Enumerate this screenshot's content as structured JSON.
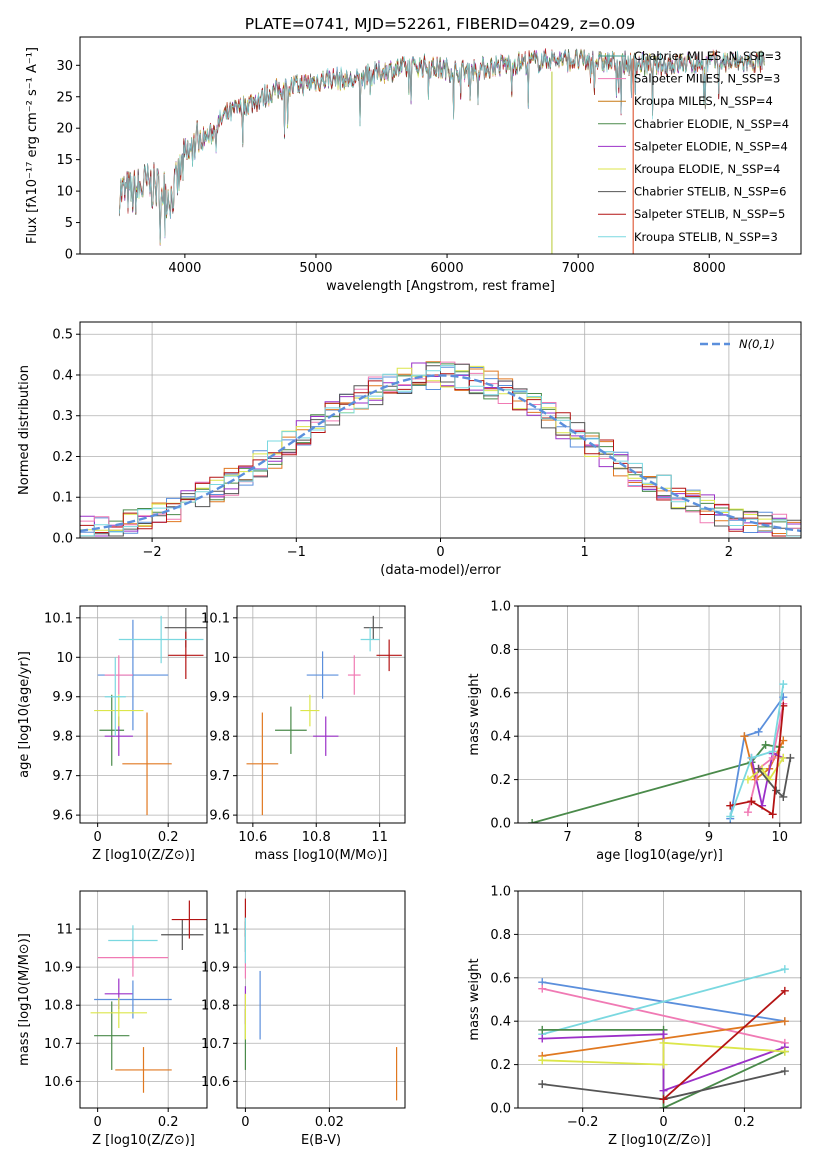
{
  "figure": {
    "title": "PLATE=0741, MJD=52261, FIBERID=0429, z=0.09"
  },
  "chart_data": [
    {
      "id": "spectrum",
      "type": "line",
      "xlabel": "wavelength [Angstrom, rest frame]",
      "ylabel": "Flux [fλ10⁻¹⁷ erg cm⁻² s⁻¹ A⁻¹]",
      "xlim": [
        3200,
        8700
      ],
      "ylim": [
        0,
        34.5
      ],
      "xticks": [
        4000,
        5000,
        6000,
        7000,
        8000
      ],
      "yticks": [
        0,
        5,
        10,
        15,
        20,
        25,
        30
      ],
      "grid": false,
      "legend": "top-right",
      "continuum": {
        "x": [
          3500,
          3600,
          3700,
          3800,
          3900,
          4000,
          4100,
          4200,
          4300,
          4500,
          4700,
          4900,
          5100,
          5300,
          5500,
          5800,
          6100,
          6400,
          6800,
          7200,
          7600,
          8000,
          8400
        ],
        "y": [
          10,
          9.5,
          11,
          10.5,
          9,
          15,
          18,
          19,
          22,
          24,
          26,
          27,
          28,
          27.5,
          29,
          30,
          29,
          30,
          31,
          30.5,
          30,
          30.5,
          30.5
        ]
      },
      "series": [
        {
          "name": "Chabrier MILES, N_SSP=3",
          "color": "#3c9a8c"
        },
        {
          "name": "Salpeter MILES, N_SSP=3",
          "color": "#f07ab4"
        },
        {
          "name": "Kroupa MILES, N_SSP=4",
          "color": "#c87814"
        },
        {
          "name": "Chabrier ELODIE, N_SSP=4",
          "color": "#4a8a4a"
        },
        {
          "name": "Salpeter ELODIE, N_SSP=4",
          "color": "#9b30c8"
        },
        {
          "name": "Kroupa ELODIE, N_SSP=4",
          "color": "#dce64a"
        },
        {
          "name": "Chabrier STELIB, N_SSP=6",
          "color": "#555555"
        },
        {
          "name": "Salpeter STELIB, N_SSP=5",
          "color": "#b41414"
        },
        {
          "name": "Kroupa STELIB, N_SSP=3",
          "color": "#7ad8e0"
        }
      ]
    },
    {
      "id": "residuals",
      "type": "histogram",
      "xlabel": "(data-model)/error",
      "ylabel": "Normed distribution",
      "xlim": [
        -2.5,
        2.5
      ],
      "ylim": [
        0,
        0.53
      ],
      "xticks": [
        -2,
        -1,
        0,
        1,
        2
      ],
      "yticks": [
        0.0,
        0.1,
        0.2,
        0.3,
        0.4,
        0.5
      ],
      "grid": true,
      "legend": "top-right",
      "reference": {
        "name": "N(0,1)",
        "color": "#5b8fdc"
      },
      "bin_width": 0.1,
      "series_colors": [
        "#5b8fdc",
        "#e07820",
        "#4a8a4a",
        "#9b30c8",
        "#f07ab4",
        "#dce64a",
        "#555555",
        "#b41414",
        "#7ad8e0"
      ]
    },
    {
      "id": "age-vs-Z",
      "type": "errorbar",
      "xlabel": "Z [log10(Z/Z⊙)]",
      "ylabel": "age  [log10(age/yr)]",
      "xlim": [
        -0.05,
        0.31
      ],
      "ylim": [
        9.58,
        10.13
      ],
      "xticks": [
        0.0,
        0.2
      ],
      "yticks": [
        9.6,
        9.7,
        9.8,
        9.9,
        10.0,
        10.1
      ],
      "grid": true,
      "points": [
        {
          "x": 0.14,
          "y": 9.73,
          "xerr": 0.07,
          "yerr": 0.13,
          "color": "#e07820"
        },
        {
          "x": 0.04,
          "y": 9.815,
          "xerr": 0.035,
          "yerr": 0.09,
          "color": "#4a8a4a"
        },
        {
          "x": 0.06,
          "y": 9.8,
          "xerr": 0.04,
          "yerr": 0.05,
          "color": "#9b30c8"
        },
        {
          "x": 0.1,
          "y": 9.955,
          "xerr": 0.1,
          "yerr": 0.14,
          "color": "#5b8fdc"
        },
        {
          "x": 0.06,
          "y": 9.955,
          "xerr": 0.04,
          "yerr": 0.05,
          "color": "#f07ab4"
        },
        {
          "x": 0.06,
          "y": 9.865,
          "xerr": 0.07,
          "yerr": 0.04,
          "color": "#dce64a"
        },
        {
          "x": 0.25,
          "y": 10.075,
          "xerr": 0.06,
          "yerr": 0.05,
          "color": "#555555"
        },
        {
          "x": 0.25,
          "y": 10.005,
          "xerr": 0.05,
          "yerr": 0.06,
          "color": "#b41414"
        },
        {
          "x": 0.18,
          "y": 10.045,
          "xerr": 0.12,
          "yerr": 0.06,
          "color": "#7ad8e0"
        },
        {
          "x": 0.05,
          "y": 9.9,
          "xerr": 0.03,
          "yerr": 0.1,
          "color": "#7ad8e0"
        }
      ]
    },
    {
      "id": "age-vs-mass",
      "type": "errorbar",
      "xlabel": "mass [log10(M/M⊙)]",
      "ylabel": "",
      "xlim": [
        10.55,
        11.08
      ],
      "ylim": [
        9.58,
        10.13
      ],
      "xticks": [
        10.6,
        10.8,
        11.0
      ],
      "yticks": [
        9.6,
        9.7,
        9.8,
        9.9,
        10.0,
        10.1
      ],
      "grid": true,
      "points": [
        {
          "x": 10.63,
          "y": 9.73,
          "xerr": 0.05,
          "yerr": 0.13,
          "color": "#e07820"
        },
        {
          "x": 10.72,
          "y": 9.815,
          "xerr": 0.05,
          "yerr": 0.06,
          "color": "#4a8a4a"
        },
        {
          "x": 10.83,
          "y": 9.8,
          "xerr": 0.04,
          "yerr": 0.05,
          "color": "#9b30c8"
        },
        {
          "x": 10.82,
          "y": 9.955,
          "xerr": 0.05,
          "yerr": 0.06,
          "color": "#5b8fdc"
        },
        {
          "x": 10.92,
          "y": 9.955,
          "xerr": 0.02,
          "yerr": 0.05,
          "color": "#f07ab4"
        },
        {
          "x": 10.78,
          "y": 9.865,
          "xerr": 0.03,
          "yerr": 0.04,
          "color": "#dce64a"
        },
        {
          "x": 10.98,
          "y": 10.075,
          "xerr": 0.03,
          "yerr": 0.03,
          "color": "#555555"
        },
        {
          "x": 11.03,
          "y": 10.005,
          "xerr": 0.04,
          "yerr": 0.04,
          "color": "#b41414"
        },
        {
          "x": 10.97,
          "y": 10.045,
          "xerr": 0.03,
          "yerr": 0.03,
          "color": "#7ad8e0"
        }
      ]
    },
    {
      "id": "weight-vs-age",
      "type": "line",
      "xlabel": "age  [log10(age/yr)]",
      "ylabel": "mass weight",
      "xlim": [
        6.3,
        10.3
      ],
      "ylim": [
        0,
        1
      ],
      "xticks": [
        7,
        8,
        9,
        10
      ],
      "yticks": [
        0.0,
        0.2,
        0.4,
        0.6,
        0.8,
        1.0
      ],
      "grid": true,
      "series": [
        {
          "color": "#4a8a4a",
          "x": [
            6.5,
            9.6,
            9.8,
            10.0
          ],
          "y": [
            0.0,
            0.28,
            0.36,
            0.35
          ]
        },
        {
          "color": "#5b8fdc",
          "x": [
            9.3,
            9.5,
            9.7,
            10.05
          ],
          "y": [
            0.02,
            0.4,
            0.42,
            0.58
          ]
        },
        {
          "color": "#e07820",
          "x": [
            9.5,
            9.65,
            9.85,
            10.05
          ],
          "y": [
            0.4,
            0.2,
            0.25,
            0.38
          ]
        },
        {
          "color": "#9b30c8",
          "x": [
            9.6,
            9.75,
            9.9,
            10.05
          ],
          "y": [
            0.3,
            0.08,
            0.32,
            0.3
          ]
        },
        {
          "color": "#f07ab4",
          "x": [
            9.55,
            9.7,
            9.9,
            10.05
          ],
          "y": [
            0.05,
            0.25,
            0.3,
            0.55
          ]
        },
        {
          "color": "#dce64a",
          "x": [
            9.55,
            9.75,
            9.85,
            10.05
          ],
          "y": [
            0.2,
            0.25,
            0.2,
            0.3
          ]
        },
        {
          "color": "#555555",
          "x": [
            9.7,
            9.95,
            10.05,
            10.15
          ],
          "y": [
            0.25,
            0.15,
            0.12,
            0.3
          ]
        },
        {
          "color": "#b41414",
          "x": [
            9.3,
            9.6,
            9.9,
            10.05
          ],
          "y": [
            0.08,
            0.1,
            0.04,
            0.54
          ]
        },
        {
          "color": "#7ad8e0",
          "x": [
            9.3,
            9.6,
            9.9,
            10.05
          ],
          "y": [
            0.03,
            0.3,
            0.33,
            0.64
          ]
        }
      ]
    },
    {
      "id": "mass-vs-Z",
      "type": "errorbar",
      "xlabel": "Z [log10(Z/Z⊙)]",
      "ylabel": "mass [log10(M/M⊙)]",
      "xlim": [
        -0.05,
        0.31
      ],
      "ylim": [
        10.53,
        11.1
      ],
      "xticks": [
        0.0,
        0.2
      ],
      "yticks": [
        10.6,
        10.7,
        10.8,
        10.9,
        11.0
      ],
      "grid": true,
      "points": [
        {
          "x": 0.13,
          "y": 10.63,
          "xerr": 0.08,
          "yerr": 0.06,
          "color": "#e07820"
        },
        {
          "x": 0.04,
          "y": 10.72,
          "xerr": 0.05,
          "yerr": 0.09,
          "color": "#4a8a4a"
        },
        {
          "x": 0.06,
          "y": 10.83,
          "xerr": 0.04,
          "yerr": 0.04,
          "color": "#9b30c8"
        },
        {
          "x": 0.1,
          "y": 10.815,
          "xerr": 0.11,
          "yerr": 0.05,
          "color": "#5b8fdc"
        },
        {
          "x": 0.1,
          "y": 10.925,
          "xerr": 0.1,
          "yerr": 0.05,
          "color": "#f07ab4"
        },
        {
          "x": 0.06,
          "y": 10.78,
          "xerr": 0.08,
          "yerr": 0.04,
          "color": "#dce64a"
        },
        {
          "x": 0.24,
          "y": 10.985,
          "xerr": 0.06,
          "yerr": 0.04,
          "color": "#555555"
        },
        {
          "x": 0.26,
          "y": 11.025,
          "xerr": 0.05,
          "yerr": 0.05,
          "color": "#b41414"
        },
        {
          "x": 0.1,
          "y": 10.97,
          "xerr": 0.07,
          "yerr": 0.04,
          "color": "#7ad8e0"
        }
      ]
    },
    {
      "id": "mass-vs-EBV",
      "type": "errorbar",
      "xlabel": "E(B-V)",
      "ylabel": "",
      "xlim": [
        -0.002,
        0.038
      ],
      "ylim": [
        10.53,
        11.1
      ],
      "xticks": [
        0.0,
        0.02
      ],
      "yticks": [
        10.6,
        10.7,
        10.8,
        10.9,
        11.0
      ],
      "grid": true,
      "points": [
        {
          "x": 0.036,
          "y": 10.62,
          "xerr": 0,
          "yerr": 0.07,
          "color": "#e07820"
        },
        {
          "x": 0.0,
          "y": 10.71,
          "xerr": 0,
          "yerr": 0.08,
          "color": "#4a8a4a"
        },
        {
          "x": 0.0,
          "y": 10.8,
          "xerr": 0,
          "yerr": 0.05,
          "color": "#9b30c8"
        },
        {
          "x": 0.0035,
          "y": 10.8,
          "xerr": 0,
          "yerr": 0.09,
          "color": "#5b8fdc"
        },
        {
          "x": 0.0,
          "y": 10.93,
          "xerr": 0,
          "yerr": 0.06,
          "color": "#f07ab4"
        },
        {
          "x": 0.0,
          "y": 10.77,
          "xerr": 0,
          "yerr": 0.06,
          "color": "#dce64a"
        },
        {
          "x": 0.0,
          "y": 10.98,
          "xerr": 0,
          "yerr": 0.04,
          "color": "#555555"
        },
        {
          "x": 0.0,
          "y": 11.03,
          "xerr": 0,
          "yerr": 0.05,
          "color": "#b41414"
        },
        {
          "x": 0.0,
          "y": 10.97,
          "xerr": 0,
          "yerr": 0.06,
          "color": "#7ad8e0"
        }
      ]
    },
    {
      "id": "weight-vs-Z",
      "type": "line",
      "xlabel": "Z [log10(Z/Z⊙)]",
      "ylabel": "mass weight",
      "xlim": [
        -0.36,
        0.34
      ],
      "ylim": [
        0,
        1
      ],
      "xticks": [
        -0.2,
        0.0,
        0.2
      ],
      "yticks": [
        0.0,
        0.2,
        0.4,
        0.6,
        0.8,
        1.0
      ],
      "grid": true,
      "series": [
        {
          "color": "#5b8fdc",
          "x": [
            -0.3,
            0.3
          ],
          "y": [
            0.58,
            0.4
          ]
        },
        {
          "color": "#f07ab4",
          "x": [
            -0.3,
            0.3
          ],
          "y": [
            0.55,
            0.3
          ]
        },
        {
          "color": "#7ad8e0",
          "x": [
            -0.3,
            0.3
          ],
          "y": [
            0.34,
            0.64
          ]
        },
        {
          "color": "#4a8a4a",
          "x": [
            -0.3,
            0.0,
            0.0,
            0.3
          ],
          "y": [
            0.36,
            0.36,
            0.0,
            0.26
          ]
        },
        {
          "color": "#e07820",
          "x": [
            -0.3,
            0.3
          ],
          "y": [
            0.24,
            0.4
          ]
        },
        {
          "color": "#9b30c8",
          "x": [
            -0.3,
            0.0,
            0.0,
            0.3
          ],
          "y": [
            0.32,
            0.34,
            0.08,
            0.28
          ]
        },
        {
          "color": "#dce64a",
          "x": [
            -0.3,
            0.0,
            0.0,
            0.3
          ],
          "y": [
            0.22,
            0.2,
            0.3,
            0.26
          ]
        },
        {
          "color": "#555555",
          "x": [
            -0.3,
            0.0,
            0.3
          ],
          "y": [
            0.11,
            0.04,
            0.17
          ]
        },
        {
          "color": "#b41414",
          "x": [
            0.0,
            0.3
          ],
          "y": [
            0.04,
            0.54
          ]
        }
      ]
    }
  ]
}
